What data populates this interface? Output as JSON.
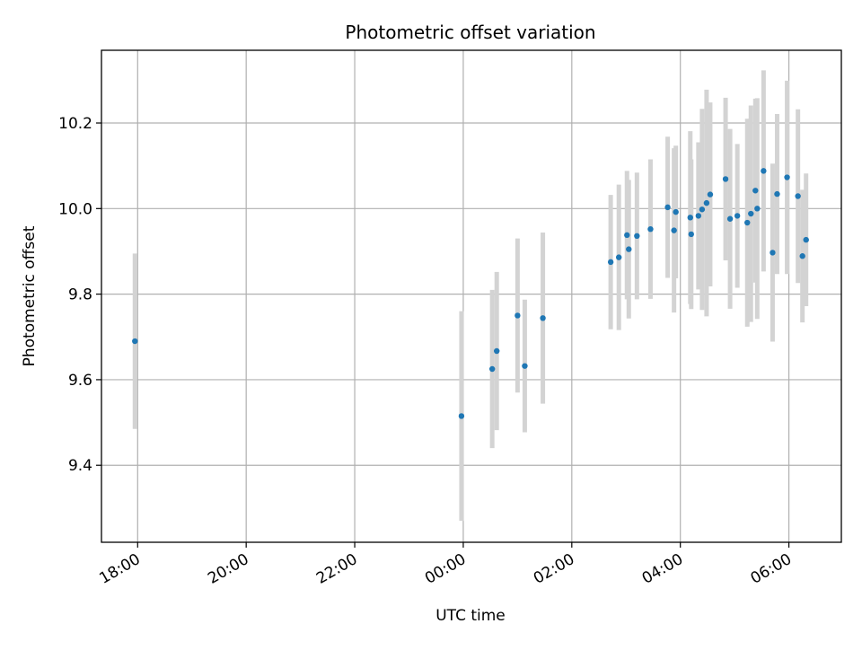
{
  "chart_data": {
    "type": "scatter",
    "title": "Photometric offset variation",
    "xlabel": "UTC time",
    "ylabel": "Photometric offset",
    "x_axis": {
      "kind": "time",
      "start_date": "2000-01-01",
      "range": [
        "17:20",
        "06:58"
      ],
      "ticks": [
        {
          "time": "18:00",
          "label": "18:00"
        },
        {
          "time": "20:00",
          "label": "20:00"
        },
        {
          "time": "22:00",
          "label": "22:00"
        },
        {
          "time": "00:00",
          "label": "00:00"
        },
        {
          "time": "02:00",
          "label": "02:00"
        },
        {
          "time": "04:00",
          "label": "04:00"
        },
        {
          "time": "06:00",
          "label": "06:00"
        }
      ]
    },
    "y_axis": {
      "range": [
        9.22,
        10.37
      ],
      "ticks": [
        9.4,
        9.6,
        9.8,
        10.0,
        10.2
      ],
      "tick_labels": [
        "9.4",
        "9.6",
        "9.8",
        "10.0",
        "10.2"
      ]
    },
    "grid": true,
    "legend": "none",
    "colors": {
      "point": "#1f77b4",
      "errorbar": "#d3d3d3",
      "grid": "#b0b0b0"
    },
    "series": [
      {
        "points": [
          {
            "x": "17:57",
            "y": 9.69,
            "yerr": 0.205
          },
          {
            "x": "23:58",
            "y": 9.515,
            "yerr": 0.245
          },
          {
            "x": "00:32",
            "y": 9.625,
            "yerr": 0.185
          },
          {
            "x": "00:37",
            "y": 9.667,
            "yerr": 0.185
          },
          {
            "x": "01:00",
            "y": 9.75,
            "yerr": 0.18
          },
          {
            "x": "01:08",
            "y": 9.632,
            "yerr": 0.155
          },
          {
            "x": "01:28",
            "y": 9.744,
            "yerr": 0.2
          },
          {
            "x": "02:43",
            "y": 9.875,
            "yerr": 0.157
          },
          {
            "x": "02:52",
            "y": 9.886,
            "yerr": 0.17
          },
          {
            "x": "03:01",
            "y": 9.938,
            "yerr": 0.15
          },
          {
            "x": "03:03",
            "y": 9.905,
            "yerr": 0.162
          },
          {
            "x": "03:12",
            "y": 9.936,
            "yerr": 0.148
          },
          {
            "x": "03:27",
            "y": 9.952,
            "yerr": 0.163
          },
          {
            "x": "03:46",
            "y": 10.003,
            "yerr": 0.165
          },
          {
            "x": "03:53",
            "y": 9.949,
            "yerr": 0.192
          },
          {
            "x": "03:55",
            "y": 9.992,
            "yerr": 0.155
          },
          {
            "x": "04:11",
            "y": 9.979,
            "yerr": 0.202
          },
          {
            "x": "04:12",
            "y": 9.94,
            "yerr": 0.175
          },
          {
            "x": "04:20",
            "y": 9.983,
            "yerr": 0.172
          },
          {
            "x": "04:24",
            "y": 9.998,
            "yerr": 0.235
          },
          {
            "x": "04:29",
            "y": 10.013,
            "yerr": 0.265
          },
          {
            "x": "04:33",
            "y": 10.033,
            "yerr": 0.215
          },
          {
            "x": "04:50",
            "y": 10.069,
            "yerr": 0.19
          },
          {
            "x": "04:55",
            "y": 9.976,
            "yerr": 0.21
          },
          {
            "x": "05:03",
            "y": 9.983,
            "yerr": 0.168
          },
          {
            "x": "05:14",
            "y": 9.967,
            "yerr": 0.243
          },
          {
            "x": "05:18",
            "y": 9.988,
            "yerr": 0.253
          },
          {
            "x": "05:23",
            "y": 10.042,
            "yerr": 0.215
          },
          {
            "x": "05:25",
            "y": 10.0,
            "yerr": 0.258
          },
          {
            "x": "05:32",
            "y": 10.088,
            "yerr": 0.235
          },
          {
            "x": "05:42",
            "y": 9.897,
            "yerr": 0.208
          },
          {
            "x": "05:47",
            "y": 10.034,
            "yerr": 0.187
          },
          {
            "x": "05:58",
            "y": 10.073,
            "yerr": 0.226
          },
          {
            "x": "06:10",
            "y": 10.029,
            "yerr": 0.203
          },
          {
            "x": "06:15",
            "y": 9.889,
            "yerr": 0.155
          },
          {
            "x": "06:19",
            "y": 9.927,
            "yerr": 0.155
          }
        ]
      }
    ]
  }
}
